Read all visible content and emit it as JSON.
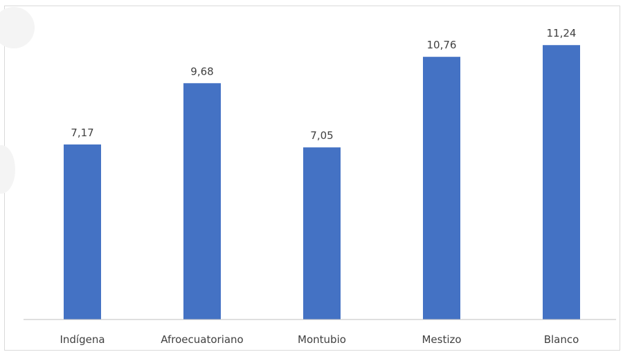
{
  "chart_data": {
    "type": "bar",
    "title": "",
    "xlabel": "",
    "ylabel": "",
    "categories": [
      "Indígena",
      "Afroecuatoriano",
      "Montubio",
      "Mestizo",
      "Blanco"
    ],
    "values": [
      7.17,
      9.68,
      7.05,
      10.76,
      11.24
    ],
    "value_labels": [
      "7,17",
      "9,68",
      "7,05",
      "10,76",
      "11,24"
    ],
    "ylim": [
      0,
      12
    ],
    "grid": false,
    "legend": "none",
    "colors": {
      "bar": "#4472c4",
      "axis": "#bfbfbf",
      "text": "#404040"
    }
  }
}
